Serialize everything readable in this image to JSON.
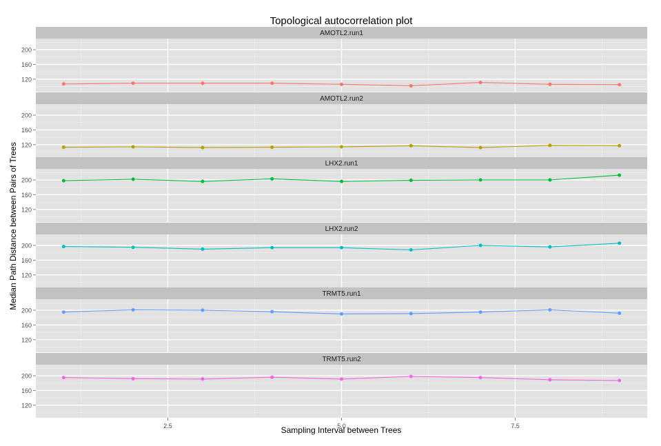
{
  "chart_data": {
    "type": "line",
    "title": "Topological autocorrelation plot",
    "xlabel": "Sampling Interval between Trees",
    "ylabel": "Median Path Distance between Pairs of Trees",
    "xlim": [
      0.6,
      9.4
    ],
    "ylim": [
      86,
      230
    ],
    "x_ticks": [
      2.5,
      5.0,
      7.5
    ],
    "x_tick_labels": [
      "2.5",
      "5.0",
      "7.5"
    ],
    "y_ticks": [
      120,
      160,
      200
    ],
    "y_tick_labels": [
      "120",
      "160",
      "200"
    ],
    "grid": true,
    "legend": "none",
    "x": [
      1,
      2,
      3,
      4,
      5,
      6,
      7,
      8,
      9
    ],
    "series": [
      {
        "name": "AMOTL2.run1",
        "color": "#F8766D",
        "values": [
          107,
          109,
          109,
          109,
          106,
          102,
          111,
          106,
          105
        ]
      },
      {
        "name": "AMOTL2.run2",
        "color": "#B79F00",
        "values": [
          113,
          114,
          112,
          113,
          114,
          117,
          112,
          118,
          117
        ]
      },
      {
        "name": "LHX2.run1",
        "color": "#00BA38",
        "values": [
          198,
          202,
          196,
          203,
          196,
          199,
          200,
          200,
          213
        ]
      },
      {
        "name": "LHX2.run2",
        "color": "#00BFC4",
        "values": [
          197,
          195,
          190,
          194,
          194,
          188,
          200,
          196,
          206
        ]
      },
      {
        "name": "TRMT5.run1",
        "color": "#619CFF",
        "values": [
          195,
          201,
          200,
          196,
          190,
          191,
          195,
          201,
          192
        ]
      },
      {
        "name": "TRMT5.run2",
        "color": "#F564E3",
        "values": [
          195,
          192,
          191,
          196,
          191,
          198,
          195,
          189,
          187
        ]
      }
    ]
  }
}
